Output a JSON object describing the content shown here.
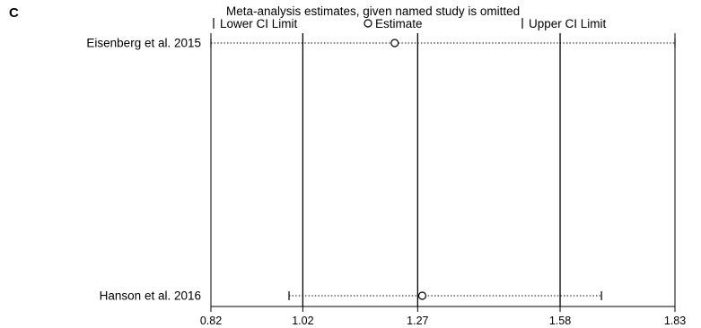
{
  "panel_label": "C",
  "chart_data": {
    "type": "scatter",
    "title": "Meta-analysis estimates, given named study is omitted",
    "legend": {
      "lower": "Lower CI Limit",
      "estimate": "Estimate",
      "upper": "Upper CI Limit",
      "placement": "top"
    },
    "xlim": [
      0.82,
      1.83
    ],
    "x_ticks": [
      0.82,
      1.02,
      1.27,
      1.58,
      1.83
    ],
    "x_tick_labels": [
      "0.82",
      "1.02",
      "1.27",
      "1.58",
      "1.83"
    ],
    "reference_lines": [
      1.02,
      1.27,
      1.58
    ],
    "studies": [
      {
        "label": "Eisenberg et al. 2015",
        "lower": 0.82,
        "estimate": 1.22,
        "upper": 1.83
      },
      {
        "label": "Hanson et al. 2016",
        "lower": 0.99,
        "estimate": 1.28,
        "upper": 1.67
      }
    ],
    "grid": false
  }
}
